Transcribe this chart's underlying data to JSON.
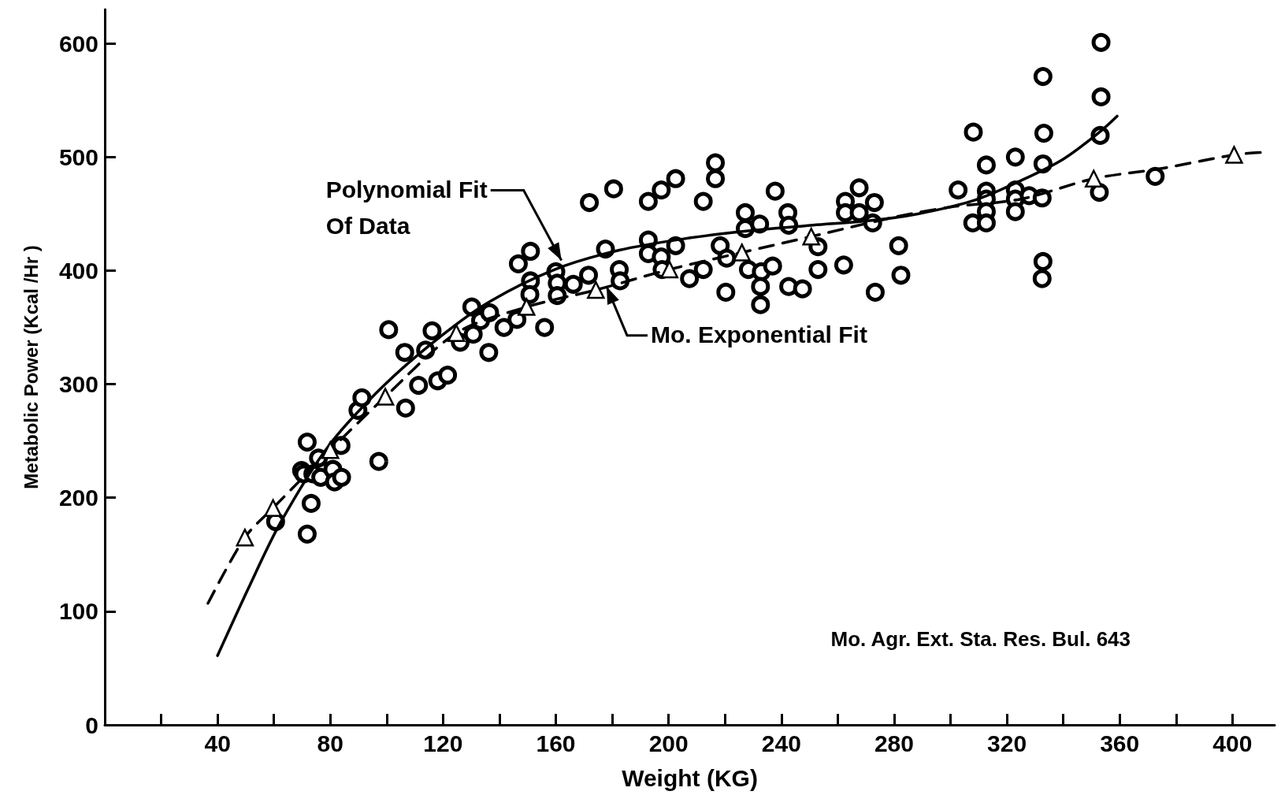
{
  "chart_data": {
    "type": "scatter",
    "xlabel": "Weight (KG)",
    "ylabel": "Metabolic Power (Kcal /Hr )",
    "xlim": [
      0,
      415
    ],
    "ylim": [
      0,
      630
    ],
    "xticks": [
      {
        "value": 20,
        "label": null
      },
      40,
      {
        "value": 60,
        "label": null
      },
      80,
      {
        "value": 100,
        "label": null
      },
      120,
      {
        "value": 140,
        "label": null
      },
      160,
      {
        "value": 180,
        "label": null
      },
      200,
      {
        "value": 220,
        "label": null
      },
      240,
      {
        "value": 260,
        "label": null
      },
      280,
      {
        "value": 300,
        "label": null
      },
      320,
      {
        "value": 340,
        "label": null
      },
      360,
      {
        "value": 380,
        "label": null
      },
      400
    ],
    "yticks": [
      0,
      100,
      200,
      300,
      400,
      500,
      600
    ],
    "grid": false,
    "annotations": [
      {
        "text": "Polynomial Fit\nOf Data",
        "x": 162,
        "y": 409
      },
      {
        "text": "Mo. Exponential Fit",
        "x": 178,
        "y": 386
      },
      "Mo. Agr. Ext. Sta. Res. Bul. 643"
    ],
    "series": [
      {
        "marker": "circle",
        "color": "#000000",
        "x": [
          60.6,
          71.8,
          71.8,
          73.2,
          69.8,
          70.6,
          73.8,
          75.8,
          76.6,
          80.9,
          81.5,
          84,
          83.8,
          89.8,
          91.2,
          97.2,
          100.7,
          106.4,
          106.7,
          111.3,
          113.8,
          116.1,
          118.1,
          121.6,
          126.1,
          130.2,
          130.7,
          133.3,
          136.5,
          136.2,
          141.6,
          146.2,
          146.7,
          151,
          151,
          150.8,
          156,
          160,
          160.5,
          160.5,
          166.2,
          171.9,
          171.6,
          177.6,
          180.5,
          182.5,
          182.8,
          192.8,
          192.8,
          192.8,
          197.4,
          197.4,
          197.7,
          202.5,
          202.5,
          207.4,
          212.3,
          212.3,
          216.6,
          216.6,
          218.3,
          220.3,
          220.6,
          227.2,
          227.2,
          228.3,
          232.3,
          232.9,
          232.6,
          232.6,
          236.9,
          237.8,
          242.3,
          242.6,
          242.6,
          247.5,
          253,
          253,
          262.1,
          262.7,
          262.7,
          267.6,
          267.6,
          273,
          272.4,
          273.3,
          281.6,
          282.4,
          302.7,
          308.1,
          307.9,
          312.7,
          312.7,
          312.7,
          312.7,
          312.7,
          323,
          323,
          323,
          323,
          327.9,
          332.8,
          333.1,
          332.8,
          332.5,
          332.8,
          332.5,
          353.4,
          353.4,
          353.1,
          352.8,
          372.6
        ],
        "values": [
          179,
          249,
          168,
          195,
          224,
          221,
          221,
          235,
          218,
          225,
          214,
          218,
          246,
          277,
          288,
          232,
          348,
          328,
          279,
          299,
          330,
          347,
          303,
          308,
          337,
          368,
          344,
          356,
          363,
          328,
          350,
          357,
          406,
          417,
          391,
          379,
          350,
          399,
          389,
          378,
          388,
          460,
          396,
          419,
          472,
          401,
          391,
          461,
          427,
          415,
          471,
          412,
          401,
          481,
          422,
          393,
          461,
          401,
          495,
          481,
          422,
          381,
          411,
          451,
          437,
          401,
          441,
          399,
          386,
          370,
          404,
          470,
          451,
          440,
          386,
          384,
          401,
          421,
          405,
          461,
          451,
          473,
          451,
          460,
          442,
          381,
          422,
          396,
          471,
          522,
          442,
          493,
          470,
          463,
          452,
          442,
          500,
          471,
          463,
          452,
          466,
          571,
          521,
          494,
          464,
          408,
          393,
          601,
          553,
          519,
          469,
          483
        ]
      },
      {
        "type": "line",
        "line_style": "solid",
        "marker": "none",
        "color": "#000000",
        "x": [
          40,
          50.9,
          62.3,
          79.5,
          99.5,
          119.6,
          136.7,
          159.6,
          182.5,
          205.4,
          228.3,
          251.2,
          271.3,
          288.4,
          308.5,
          325.6,
          339.9,
          351.4,
          359.1
        ],
        "values": [
          61,
          120,
          178,
          246,
          300,
          343,
          373,
          401,
          418,
          428,
          435,
          440,
          444,
          450,
          462,
          480,
          498,
          519,
          536
        ]
      },
      {
        "type": "line",
        "line_style": "dashed",
        "marker": "none",
        "color": "#000000",
        "x": [
          36.6,
          49.7,
          59.7,
          80,
          99.5,
          124.7,
          149.6,
          174.2,
          200.3,
          226,
          250.6,
          280,
          300,
          325,
          350.8,
          375,
          400.6,
          410
        ],
        "values": [
          107,
          165,
          191,
          242,
          289,
          345,
          368,
          383,
          401,
          416,
          430,
          447,
          456,
          463,
          481,
          490,
          502,
          504
        ]
      },
      {
        "type": "scatter",
        "marker": "triangle",
        "color": "#000000",
        "x": [
          49.7,
          59.7,
          80,
          99.5,
          124.7,
          149.6,
          174.2,
          200.3,
          226,
          250.6,
          350.8,
          400.6
        ],
        "values": [
          165,
          191,
          242,
          289,
          345,
          368,
          383,
          401,
          416,
          430,
          481,
          502
        ]
      }
    ]
  }
}
